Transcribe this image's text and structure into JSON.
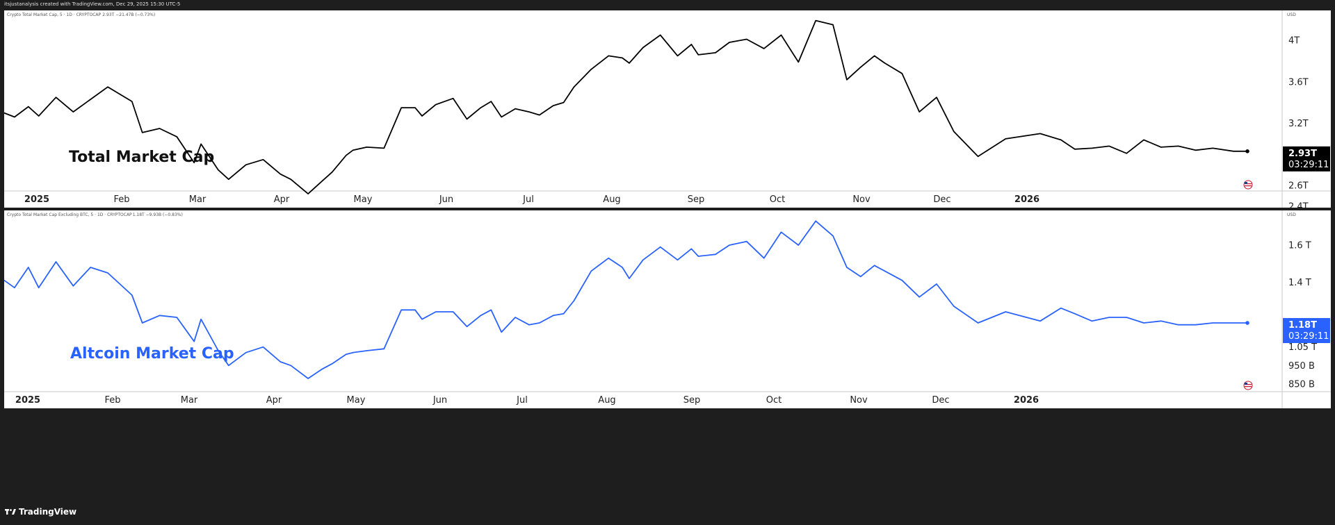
{
  "header": {
    "attribution": "itsjustanalysis created with TradingView.com, Dec 29, 2025 15:30 UTC-5"
  },
  "footer": {
    "brand": "TradingView"
  },
  "chart_data": [
    {
      "type": "line",
      "symbol_text": "Crypto Total Market Cap, 5 · 1D · CRYPTOCAP",
      "last_value_text": "2.93T",
      "change_text": "−21.47B (−0.73%)",
      "annotation": "Total Market Cap",
      "currency": "USD",
      "color": "#000000",
      "y_ticks": [
        "2.4T",
        "2.6T",
        "3.2T",
        "3.6T",
        "4T"
      ],
      "y_tick_values": [
        2.4,
        2.6,
        3.2,
        3.6,
        4.0
      ],
      "price_label": {
        "value": "2.93T",
        "countdown": "03:29:11",
        "bg": "#000000"
      },
      "time_ticks": [
        "2025",
        "Feb",
        "Mar",
        "Apr",
        "May",
        "Jun",
        "Jul",
        "Aug",
        "Sep",
        "Oct",
        "Nov",
        "Dec",
        "2026"
      ],
      "series": [
        {
          "x": [
            0,
            3,
            7,
            10,
            15,
            20,
            25,
            30,
            37,
            40,
            45,
            50,
            55,
            57,
            62,
            65,
            70,
            75,
            80,
            83,
            88,
            92,
            95,
            99,
            101,
            105,
            110,
            115,
            119,
            121,
            125,
            130,
            134,
            138,
            141,
            144,
            148,
            152,
            155,
            159,
            162,
            165,
            170,
            175,
            179,
            181,
            185,
            190,
            195,
            199,
            201,
            206,
            210,
            215,
            220,
            225,
            230,
            235,
            240,
            244,
            248,
            252,
            255,
            260,
            265,
            270,
            275,
            282,
            290,
            300,
            306,
            310,
            315,
            320,
            325,
            330,
            335,
            340,
            345,
            350,
            356,
            360
          ],
          "values": [
            3.3,
            3.26,
            3.36,
            3.27,
            3.45,
            3.31,
            3.43,
            3.55,
            3.41,
            3.11,
            3.15,
            3.07,
            2.82,
            3.0,
            2.75,
            2.66,
            2.8,
            2.85,
            2.71,
            2.66,
            2.52,
            2.64,
            2.73,
            2.89,
            2.94,
            2.97,
            2.96,
            3.35,
            3.35,
            3.27,
            3.38,
            3.44,
            3.24,
            3.35,
            3.41,
            3.26,
            3.34,
            3.31,
            3.28,
            3.37,
            3.4,
            3.55,
            3.72,
            3.85,
            3.83,
            3.78,
            3.93,
            4.05,
            3.85,
            3.96,
            3.86,
            3.88,
            3.98,
            4.01,
            3.92,
            4.05,
            3.79,
            4.19,
            4.15,
            3.62,
            3.74,
            3.85,
            3.78,
            3.68,
            3.31,
            3.45,
            3.12,
            2.88,
            3.05,
            3.1,
            3.04,
            2.95,
            2.96,
            2.98,
            2.91,
            3.04,
            2.97,
            2.98,
            2.94,
            2.96,
            2.93,
            2.93
          ]
        }
      ]
    },
    {
      "type": "line",
      "symbol_text": "Crypto Total Market Cap Excluding BTC, 5 · 1D · CRYPTOCAP",
      "last_value_text": "1.18T",
      "change_text": "−9.93B (−0.83%)",
      "annotation": "Altcoin Market Cap",
      "currency": "USD",
      "color": "#2962ff",
      "y_ticks": [
        "850 B",
        "950 B",
        "1.05 T",
        "1.4 T",
        "1.6 T"
      ],
      "y_tick_values": [
        0.85,
        0.95,
        1.05,
        1.4,
        1.6
      ],
      "price_label": {
        "value": "1.18T",
        "countdown": "03:29:11",
        "bg": "#2962ff"
      },
      "time_ticks": [
        "2025",
        "Feb",
        "Mar",
        "Apr",
        "May",
        "Jun",
        "Jul",
        "Aug",
        "Sep",
        "Oct",
        "Nov",
        "Dec",
        "2026"
      ],
      "series": [
        {
          "x": [
            0,
            3,
            7,
            10,
            15,
            20,
            25,
            30,
            37,
            40,
            45,
            50,
            55,
            57,
            62,
            65,
            70,
            75,
            80,
            83,
            88,
            92,
            95,
            99,
            101,
            105,
            110,
            115,
            119,
            121,
            125,
            130,
            134,
            138,
            141,
            144,
            148,
            152,
            155,
            159,
            162,
            165,
            170,
            175,
            179,
            181,
            185,
            190,
            195,
            199,
            201,
            206,
            210,
            215,
            220,
            225,
            230,
            235,
            240,
            244,
            248,
            252,
            255,
            260,
            265,
            270,
            275,
            282,
            290,
            300,
            306,
            310,
            315,
            320,
            325,
            330,
            335,
            340,
            345,
            350,
            356,
            360
          ],
          "values": [
            1.41,
            1.37,
            1.48,
            1.37,
            1.51,
            1.38,
            1.48,
            1.45,
            1.33,
            1.18,
            1.22,
            1.21,
            1.08,
            1.2,
            1.03,
            0.95,
            1.02,
            1.05,
            0.97,
            0.95,
            0.88,
            0.93,
            0.96,
            1.01,
            1.02,
            1.03,
            1.04,
            1.25,
            1.25,
            1.2,
            1.24,
            1.24,
            1.16,
            1.22,
            1.25,
            1.13,
            1.21,
            1.17,
            1.18,
            1.22,
            1.23,
            1.3,
            1.46,
            1.53,
            1.48,
            1.42,
            1.52,
            1.59,
            1.52,
            1.58,
            1.54,
            1.55,
            1.6,
            1.62,
            1.53,
            1.67,
            1.6,
            1.73,
            1.65,
            1.48,
            1.43,
            1.49,
            1.46,
            1.41,
            1.32,
            1.39,
            1.27,
            1.18,
            1.24,
            1.19,
            1.26,
            1.23,
            1.19,
            1.21,
            1.21,
            1.18,
            1.19,
            1.17,
            1.17,
            1.18,
            1.18,
            1.18
          ]
        }
      ]
    }
  ]
}
